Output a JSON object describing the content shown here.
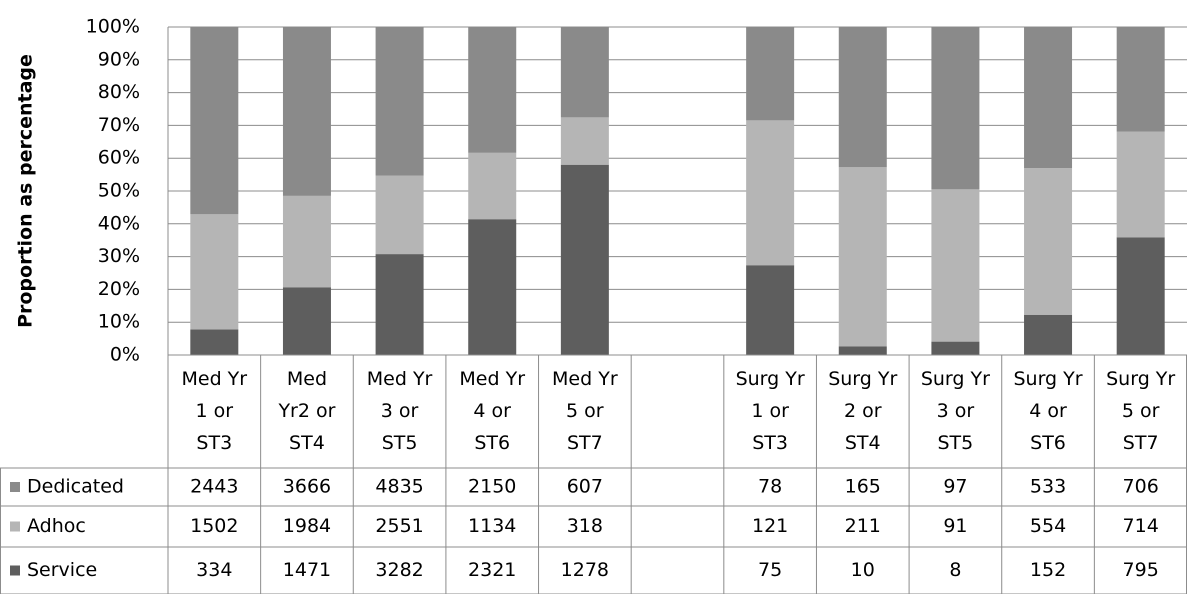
{
  "chart_data": {
    "type": "bar",
    "stacking": "percent",
    "y_label": "Proportion as percentage",
    "categories": [
      "Med Yr\n1 or\nST3",
      "Med\nYr2 or\nST4",
      "Med Yr\n3 or\nST5",
      "Med Yr\n4 or\nST6",
      "Med Yr\n5 or\nST7",
      null,
      "Surg Yr\n1 or\nST3",
      "Surg Yr\n2 or\nST4",
      "Surg Yr\n3 or\nST5",
      "Surg Yr\n4 or\nST6",
      "Surg Yr\n5 or\nST7"
    ],
    "series": [
      {
        "name": "Dedicated",
        "color": "#8a8a8a",
        "values": [
          2443,
          3666,
          4835,
          2150,
          607,
          null,
          78,
          165,
          97,
          533,
          706
        ]
      },
      {
        "name": "Adhoc",
        "color": "#b5b5b5",
        "values": [
          1502,
          1984,
          2551,
          1134,
          318,
          null,
          121,
          211,
          91,
          554,
          714
        ]
      },
      {
        "name": "Service",
        "color": "#5e5e5e",
        "values": [
          334,
          1471,
          3282,
          2321,
          1278,
          null,
          75,
          10,
          8,
          152,
          795
        ]
      }
    ],
    "ylim": [
      0,
      100
    ],
    "yticks": [
      {
        "value": 0,
        "label": "0%"
      },
      {
        "value": 10,
        "label": "10%"
      },
      {
        "value": 20,
        "label": "20%"
      },
      {
        "value": 30,
        "label": "30%"
      },
      {
        "value": 40,
        "label": "40%"
      },
      {
        "value": 50,
        "label": "50%"
      },
      {
        "value": 60,
        "label": "60%"
      },
      {
        "value": 70,
        "label": "70%"
      },
      {
        "value": 80,
        "label": "80%"
      },
      {
        "value": 90,
        "label": "90%"
      },
      {
        "value": 100,
        "label": "100%"
      }
    ],
    "grid": true,
    "data_table": true
  }
}
